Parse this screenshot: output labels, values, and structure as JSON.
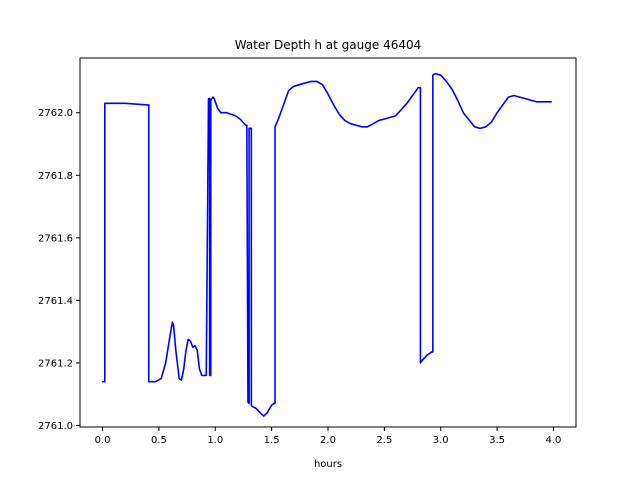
{
  "chart_data": {
    "type": "line",
    "title": "Water Depth h at gauge 46404",
    "xlabel": "hours",
    "ylabel": "",
    "xlim": [
      -0.2,
      4.2
    ],
    "ylim": [
      2760.995,
      2762.175
    ],
    "xticks": [
      0.0,
      0.5,
      1.0,
      1.5,
      2.0,
      2.5,
      3.0,
      3.5,
      4.0
    ],
    "xtick_labels": [
      "0.0",
      "0.5",
      "1.0",
      "1.5",
      "2.0",
      "2.5",
      "3.0",
      "3.5",
      "4.0"
    ],
    "yticks": [
      2761.0,
      2761.2,
      2761.4,
      2761.6,
      2761.8,
      2762.0
    ],
    "ytick_labels": [
      "2761.0",
      "2761.2",
      "2761.4",
      "2761.6",
      "2761.8",
      "2762.0"
    ],
    "grid": false,
    "series": [
      {
        "color": "#0000ff",
        "x": [
          0.0,
          0.02,
          0.02,
          0.2,
          0.4,
          0.41,
          0.41,
          0.47,
          0.52,
          0.56,
          0.6,
          0.62,
          0.63,
          0.65,
          0.68,
          0.7,
          0.72,
          0.74,
          0.76,
          0.78,
          0.8,
          0.82,
          0.84,
          0.86,
          0.88,
          0.9,
          0.92,
          0.94,
          0.95,
          0.95,
          0.96,
          0.96,
          0.98,
          0.98,
          0.99,
          1.0,
          1.02,
          1.05,
          1.08,
          1.1,
          1.14,
          1.18,
          1.22,
          1.27,
          1.28,
          1.29,
          1.3,
          1.3,
          1.32,
          1.32,
          1.33,
          1.33,
          1.36,
          1.4,
          1.43,
          1.46,
          1.5,
          1.52,
          1.53,
          1.53,
          1.56,
          1.6,
          1.65,
          1.68,
          1.7,
          1.75,
          1.8,
          1.85,
          1.9,
          1.95,
          2.0,
          2.05,
          2.1,
          2.15,
          2.2,
          2.25,
          2.3,
          2.35,
          2.4,
          2.45,
          2.5,
          2.6,
          2.65,
          2.7,
          2.75,
          2.8,
          2.82,
          2.82,
          2.84,
          2.88,
          2.92,
          2.93,
          2.93,
          2.95,
          3.0,
          3.05,
          3.1,
          3.15,
          3.2,
          3.3,
          3.35,
          3.4,
          3.45,
          3.5,
          3.55,
          3.6,
          3.65,
          3.7,
          3.75,
          3.8,
          3.85,
          3.9,
          3.98
        ],
        "y": [
          2761.14,
          2761.14,
          2762.03,
          2762.03,
          2762.025,
          2762.025,
          2761.14,
          2761.14,
          2761.15,
          2761.2,
          2761.29,
          2761.33,
          2761.32,
          2761.24,
          2761.15,
          2761.145,
          2761.18,
          2761.24,
          2761.275,
          2761.27,
          2761.25,
          2761.255,
          2761.24,
          2761.18,
          2761.16,
          2761.16,
          2761.16,
          2762.045,
          2762.045,
          2761.16,
          2761.16,
          2762.04,
          2762.05,
          2762.05,
          2762.045,
          2762.035,
          2762.015,
          2762.0,
          2762.0,
          2762.0,
          2761.995,
          2761.99,
          2761.98,
          2761.96,
          2761.96,
          2761.075,
          2761.07,
          2761.95,
          2761.95,
          2761.065,
          2761.06,
          2761.06,
          2761.055,
          2761.04,
          2761.03,
          2761.04,
          2761.065,
          2761.07,
          2761.07,
          2761.955,
          2761.98,
          2762.02,
          2762.07,
          2762.08,
          2762.085,
          2762.09,
          2762.095,
          2762.1,
          2762.1,
          2762.09,
          2762.06,
          2762.025,
          2761.995,
          2761.975,
          2761.965,
          2761.96,
          2761.955,
          2761.955,
          2761.965,
          2761.975,
          2761.98,
          2761.99,
          2762.01,
          2762.03,
          2762.055,
          2762.08,
          2762.08,
          2761.2,
          2761.21,
          2761.225,
          2761.235,
          2761.235,
          2762.12,
          2762.125,
          2762.12,
          2762.1,
          2762.075,
          2762.04,
          2762.0,
          2761.955,
          2761.95,
          2761.955,
          2761.97,
          2762.0,
          2762.025,
          2762.05,
          2762.055,
          2762.05,
          2762.045,
          2762.04,
          2762.035,
          2762.035,
          2762.035
        ]
      }
    ]
  }
}
